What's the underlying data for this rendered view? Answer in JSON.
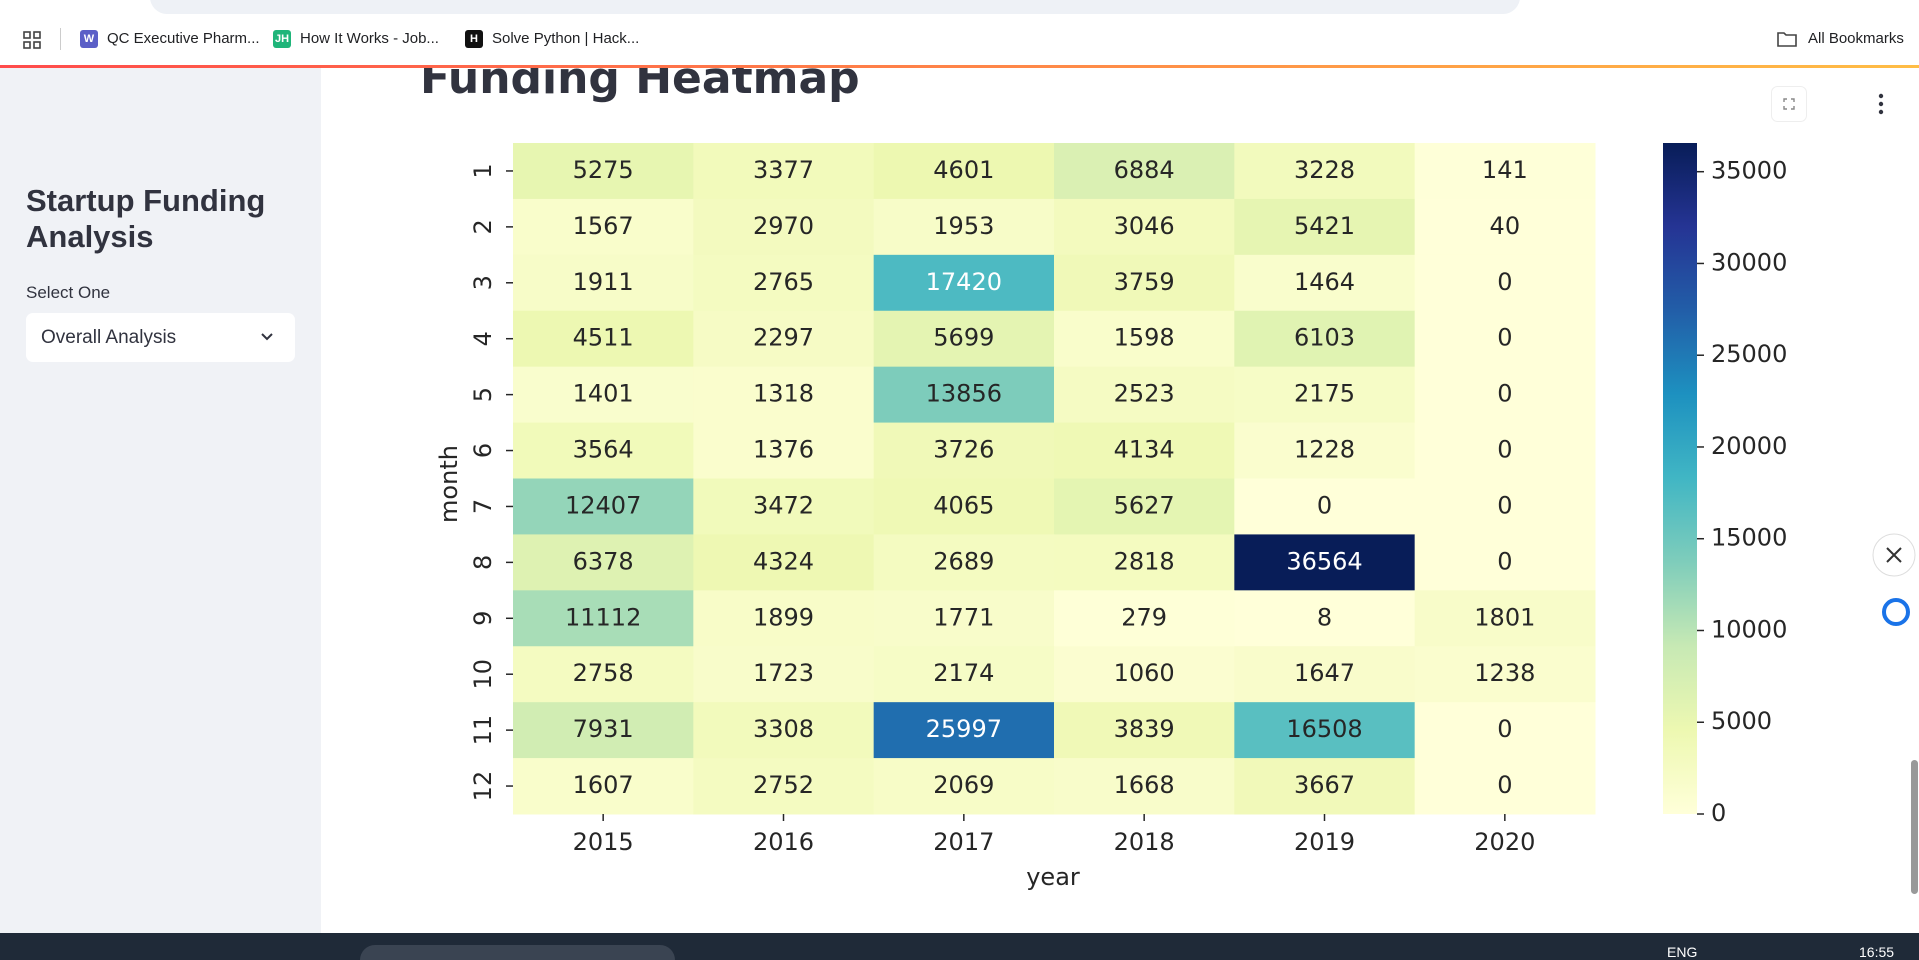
{
  "browser": {
    "bookmarks": [
      "QC Executive Pharm...",
      "How It Works - Job...",
      "Solve Python | Hack..."
    ],
    "all_bookmarks": "All Bookmarks"
  },
  "sidebar": {
    "title": "Startup Funding Analysis",
    "select_label": "Select One",
    "select_value": "Overall Analysis"
  },
  "taskbar": {
    "language": "ENG",
    "time": "16:55"
  },
  "chart_data": {
    "type": "heatmap",
    "title": "Funding Heatmap",
    "x_label": "year",
    "y_label": "month",
    "x_categories": [
      "2015",
      "2016",
      "2017",
      "2018",
      "2019",
      "2020"
    ],
    "y_categories": [
      "1",
      "2",
      "3",
      "4",
      "5",
      "6",
      "7",
      "8",
      "9",
      "10",
      "11",
      "12"
    ],
    "values": [
      [
        5275,
        3377,
        4601,
        6884,
        3228,
        141
      ],
      [
        1567,
        2970,
        1953,
        3046,
        5421,
        40
      ],
      [
        1911,
        2765,
        17420,
        3759,
        1464,
        0
      ],
      [
        4511,
        2297,
        5699,
        1598,
        6103,
        0
      ],
      [
        1401,
        1318,
        13856,
        2523,
        2175,
        0
      ],
      [
        3564,
        1376,
        3726,
        4134,
        1228,
        0
      ],
      [
        12407,
        3472,
        4065,
        5627,
        0,
        0
      ],
      [
        6378,
        4324,
        2689,
        2818,
        36564,
        0
      ],
      [
        11112,
        1899,
        1771,
        279,
        8,
        1801
      ],
      [
        2758,
        1723,
        2174,
        1060,
        1647,
        1238
      ],
      [
        7931,
        3308,
        25997,
        3839,
        16508,
        0
      ],
      [
        1607,
        2752,
        2069,
        1668,
        3667,
        0
      ]
    ],
    "colormap": [
      "#ffffd9",
      "#edf8b1",
      "#c7e9b4",
      "#7fcdbb",
      "#41b6c4",
      "#1d91c0",
      "#225ea8",
      "#253494",
      "#081d58"
    ],
    "zlim": [
      0,
      36564
    ],
    "zticks": [
      0,
      5000,
      10000,
      15000,
      20000,
      25000,
      30000,
      35000
    ]
  }
}
